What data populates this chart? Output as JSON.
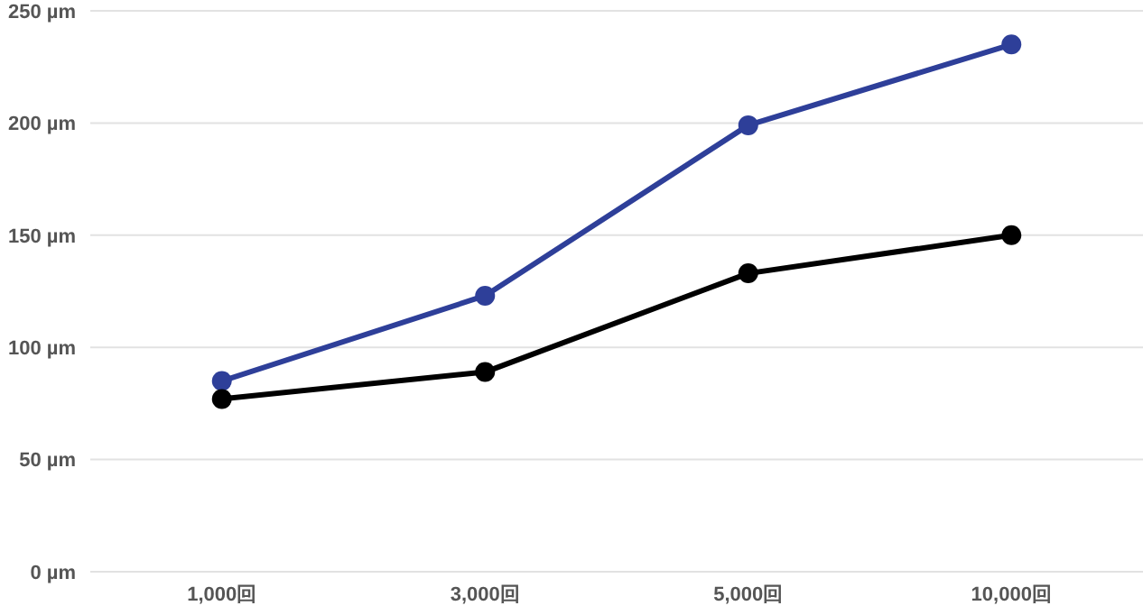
{
  "chart_data": {
    "type": "line",
    "categories": [
      "1,000回",
      "3,000回",
      "5,000回",
      "10,000回"
    ],
    "series": [
      {
        "color": "#2e3f99",
        "values": [
          85,
          123,
          199,
          235
        ]
      },
      {
        "color": "#000000",
        "values": [
          77,
          89,
          133,
          150
        ]
      }
    ],
    "ylim": [
      0,
      250
    ],
    "yticks": [
      {
        "value": 0,
        "label": "0 µm"
      },
      {
        "value": 50,
        "label": "50 µm"
      },
      {
        "value": 100,
        "label": "100 µm"
      },
      {
        "value": 150,
        "label": "150 µm"
      },
      {
        "value": 200,
        "label": "200 µm"
      },
      {
        "value": 250,
        "label": "250 µm"
      }
    ],
    "grid": "y",
    "legend": false,
    "marker": "circle",
    "line_style": "solid"
  }
}
